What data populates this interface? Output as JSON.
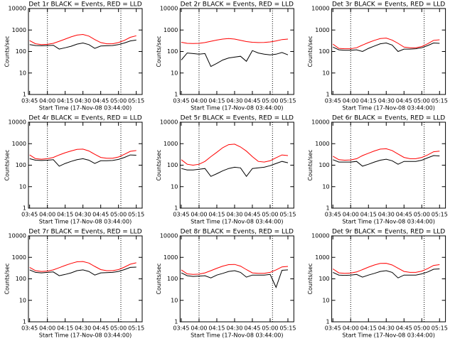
{
  "chart_data": [
    {
      "type": "line",
      "title": "Det 1r BLACK = Events, RED = LLD",
      "x_label": "Start Time (17-Nov-08 03:44:00)",
      "y_label": "Counts/sec",
      "log_y": true,
      "xlim": [
        "03:44",
        "05:20"
      ],
      "xticks": [
        "03:45",
        "04:00",
        "04:15",
        "04:30",
        "04:45",
        "05:00",
        "05:15"
      ],
      "ylim": [
        1,
        10000
      ],
      "yticks": [
        1,
        10,
        100,
        1000,
        10000
      ],
      "vlines": [
        "04:00",
        "05:02"
      ],
      "x": [
        "03:45",
        "03:50",
        "03:55",
        "04:00",
        "04:05",
        "04:10",
        "04:15",
        "04:20",
        "04:25",
        "04:30",
        "04:35",
        "04:40",
        "04:45",
        "04:50",
        "04:55",
        "05:00",
        "05:05",
        "05:10",
        "05:15"
      ],
      "series": [
        {
          "name": "Events",
          "color": "#000000",
          "values": [
            210,
            190,
            185,
            190,
            195,
            130,
            150,
            175,
            220,
            250,
            210,
            140,
            180,
            185,
            190,
            210,
            250,
            310,
            340
          ]
        },
        {
          "name": "LLD",
          "color": "#ff0000",
          "values": [
            320,
            230,
            210,
            215,
            240,
            300,
            380,
            480,
            580,
            620,
            520,
            360,
            260,
            230,
            230,
            260,
            330,
            460,
            540
          ]
        }
      ]
    },
    {
      "type": "line",
      "title": "Det 2r BLACK = Events, RED = LLD",
      "x_label": "Start Time (17-Nov-08 03:44:00)",
      "y_label": "Counts/sec",
      "log_y": true,
      "xlim": [
        "03:44",
        "05:20"
      ],
      "xticks": [
        "03:45",
        "04:00",
        "04:15",
        "04:30",
        "04:45",
        "05:00",
        "05:15"
      ],
      "ylim": [
        1,
        10000
      ],
      "yticks": [
        1,
        10,
        100,
        1000,
        10000
      ],
      "vlines": [
        "04:00",
        "05:02"
      ],
      "x": [
        "03:45",
        "03:50",
        "03:55",
        "04:00",
        "04:05",
        "04:10",
        "04:15",
        "04:20",
        "04:25",
        "04:30",
        "04:35",
        "04:40",
        "04:45",
        "04:50",
        "04:55",
        "05:00",
        "05:05",
        "05:10",
        "05:15"
      ],
      "series": [
        {
          "name": "Events",
          "color": "#000000",
          "values": [
            40,
            85,
            80,
            75,
            80,
            20,
            28,
            40,
            50,
            55,
            60,
            35,
            110,
            85,
            75,
            70,
            75,
            90,
            70
          ]
        },
        {
          "name": "LLD",
          "color": "#ff0000",
          "values": [
            270,
            240,
            235,
            240,
            260,
            300,
            340,
            380,
            400,
            380,
            330,
            290,
            270,
            260,
            265,
            280,
            310,
            360,
            380
          ]
        }
      ]
    },
    {
      "type": "line",
      "title": "Det 3r BLACK = Events, RED = LLD",
      "x_label": "Start Time (17-Nov-08 03:44:00)",
      "y_label": "Counts/sec",
      "log_y": true,
      "xlim": [
        "03:44",
        "05:20"
      ],
      "xticks": [
        "03:45",
        "04:00",
        "04:15",
        "04:30",
        "04:45",
        "05:00",
        "05:15"
      ],
      "ylim": [
        1,
        10000
      ],
      "yticks": [
        1,
        10,
        100,
        1000,
        10000
      ],
      "vlines": [
        "04:00",
        "05:02"
      ],
      "x": [
        "03:45",
        "03:50",
        "03:55",
        "04:00",
        "04:05",
        "04:10",
        "04:15",
        "04:20",
        "04:25",
        "04:30",
        "04:35",
        "04:40",
        "04:45",
        "04:50",
        "04:55",
        "05:00",
        "05:05",
        "05:10",
        "05:15"
      ],
      "series": [
        {
          "name": "Events",
          "color": "#000000",
          "values": [
            160,
            120,
            115,
            115,
            120,
            100,
            140,
            180,
            230,
            250,
            200,
            100,
            130,
            130,
            135,
            150,
            190,
            250,
            240
          ]
        },
        {
          "name": "LLD",
          "color": "#ff0000",
          "values": [
            220,
            140,
            135,
            135,
            150,
            200,
            260,
            330,
            400,
            420,
            340,
            240,
            160,
            150,
            150,
            170,
            230,
            330,
            350
          ]
        }
      ]
    },
    {
      "type": "line",
      "title": "Det 4r BLACK = Events, RED = LLD",
      "x_label": "Start Time (17-Nov-08 03:44:00)",
      "y_label": "Counts/sec",
      "log_y": true,
      "xlim": [
        "03:44",
        "05:20"
      ],
      "xticks": [
        "03:45",
        "04:00",
        "04:15",
        "04:30",
        "04:45",
        "05:00",
        "05:15"
      ],
      "ylim": [
        1,
        10000
      ],
      "yticks": [
        1,
        10,
        100,
        1000,
        10000
      ],
      "vlines": [
        "04:00",
        "05:02"
      ],
      "x": [
        "03:45",
        "03:50",
        "03:55",
        "04:00",
        "04:05",
        "04:10",
        "04:15",
        "04:20",
        "04:25",
        "04:30",
        "04:35",
        "04:40",
        "04:45",
        "04:50",
        "04:55",
        "05:00",
        "05:05",
        "05:10",
        "05:15"
      ],
      "series": [
        {
          "name": "Events",
          "color": "#000000",
          "values": [
            200,
            170,
            165,
            170,
            180,
            90,
            120,
            150,
            180,
            200,
            170,
            120,
            160,
            160,
            165,
            185,
            230,
            300,
            290
          ]
        },
        {
          "name": "LLD",
          "color": "#ff0000",
          "values": [
            300,
            200,
            190,
            200,
            230,
            300,
            380,
            460,
            540,
            560,
            460,
            320,
            230,
            210,
            210,
            240,
            320,
            440,
            480
          ]
        }
      ]
    },
    {
      "type": "line",
      "title": "Det 5r BLACK = Events, RED = LLD",
      "x_label": "Start Time (17-Nov-08 03:44:00)",
      "y_label": "Counts/sec",
      "log_y": true,
      "xlim": [
        "03:44",
        "05:20"
      ],
      "xticks": [
        "03:45",
        "04:00",
        "04:15",
        "04:30",
        "04:45",
        "05:00",
        "05:15"
      ],
      "ylim": [
        1,
        10000
      ],
      "yticks": [
        1,
        10,
        100,
        1000,
        10000
      ],
      "vlines": [
        "04:00",
        "05:02"
      ],
      "x": [
        "03:45",
        "03:50",
        "03:55",
        "04:00",
        "04:05",
        "04:10",
        "04:15",
        "04:20",
        "04:25",
        "04:30",
        "04:35",
        "04:40",
        "04:45",
        "04:50",
        "04:55",
        "05:00",
        "05:05",
        "05:10",
        "05:15"
      ],
      "series": [
        {
          "name": "Events",
          "color": "#000000",
          "values": [
            70,
            60,
            60,
            65,
            70,
            30,
            40,
            55,
            70,
            80,
            75,
            30,
            70,
            75,
            80,
            95,
            120,
            150,
            130
          ]
        },
        {
          "name": "LLD",
          "color": "#ff0000",
          "values": [
            180,
            110,
            100,
            110,
            150,
            250,
            400,
            650,
            900,
            950,
            700,
            450,
            250,
            150,
            140,
            160,
            220,
            300,
            280
          ]
        }
      ]
    },
    {
      "type": "line",
      "title": "Det 6r BLACK = Events, RED = LLD",
      "x_label": "Start Time (17-Nov-08 03:44:00)",
      "y_label": "Counts/sec",
      "log_y": true,
      "xlim": [
        "03:44",
        "05:20"
      ],
      "xticks": [
        "03:45",
        "04:00",
        "04:15",
        "04:30",
        "04:45",
        "05:00",
        "05:15"
      ],
      "ylim": [
        1,
        10000
      ],
      "yticks": [
        1,
        10,
        100,
        1000,
        10000
      ],
      "vlines": [
        "04:00",
        "05:02"
      ],
      "x": [
        "03:45",
        "03:50",
        "03:55",
        "04:00",
        "04:05",
        "04:10",
        "04:15",
        "04:20",
        "04:25",
        "04:30",
        "04:35",
        "04:40",
        "04:45",
        "04:50",
        "04:55",
        "05:00",
        "05:05",
        "05:10",
        "05:15"
      ],
      "series": [
        {
          "name": "Events",
          "color": "#000000",
          "values": [
            180,
            140,
            140,
            140,
            150,
            90,
            110,
            140,
            170,
            190,
            160,
            110,
            150,
            150,
            150,
            170,
            220,
            280,
            270
          ]
        },
        {
          "name": "LLD",
          "color": "#ff0000",
          "values": [
            260,
            180,
            170,
            175,
            200,
            280,
            360,
            460,
            560,
            580,
            480,
            330,
            230,
            200,
            200,
            230,
            300,
            420,
            450
          ]
        }
      ]
    },
    {
      "type": "line",
      "title": "Det 7r BLACK = Events, RED = LLD",
      "x_label": "Start Time (17-Nov-08 03:44:00)",
      "y_label": "Counts/sec",
      "log_y": true,
      "xlim": [
        "03:44",
        "05:20"
      ],
      "xticks": [
        "03:45",
        "04:00",
        "04:15",
        "04:30",
        "04:45",
        "05:00",
        "05:15"
      ],
      "ylim": [
        1,
        10000
      ],
      "yticks": [
        1,
        10,
        100,
        1000,
        10000
      ],
      "vlines": [
        "04:00",
        "05:02"
      ],
      "x": [
        "03:45",
        "03:50",
        "03:55",
        "04:00",
        "04:05",
        "04:10",
        "04:15",
        "04:20",
        "04:25",
        "04:30",
        "04:35",
        "04:40",
        "04:45",
        "04:50",
        "04:55",
        "05:00",
        "05:05",
        "05:10",
        "05:15"
      ],
      "series": [
        {
          "name": "Events",
          "color": "#000000",
          "values": [
            260,
            200,
            190,
            200,
            210,
            140,
            160,
            190,
            240,
            260,
            220,
            150,
            190,
            195,
            200,
            220,
            270,
            340,
            350
          ]
        },
        {
          "name": "LLD",
          "color": "#ff0000",
          "values": [
            340,
            240,
            220,
            230,
            260,
            330,
            420,
            520,
            620,
            640,
            540,
            380,
            270,
            240,
            240,
            270,
            350,
            480,
            560
          ]
        }
      ]
    },
    {
      "type": "line",
      "title": "Det 8r BLACK = Events, RED = LLD",
      "x_label": "Start Time (17-Nov-08 03:44:00)",
      "y_label": "Counts/sec",
      "log_y": true,
      "xlim": [
        "03:44",
        "05:20"
      ],
      "xticks": [
        "03:45",
        "04:00",
        "04:15",
        "04:30",
        "04:45",
        "05:00",
        "05:15"
      ],
      "ylim": [
        1,
        10000
      ],
      "yticks": [
        1,
        10,
        100,
        1000,
        10000
      ],
      "vlines": [
        "04:00",
        "05:02"
      ],
      "x": [
        "03:45",
        "03:50",
        "03:55",
        "04:00",
        "04:05",
        "04:10",
        "04:15",
        "04:20",
        "04:25",
        "04:30",
        "04:35",
        "04:40",
        "04:45",
        "04:50",
        "04:55",
        "05:00",
        "05:05",
        "05:10",
        "05:15"
      ],
      "series": [
        {
          "name": "Events",
          "color": "#000000",
          "values": [
            190,
            140,
            130,
            135,
            140,
            110,
            150,
            180,
            220,
            240,
            200,
            120,
            150,
            150,
            150,
            160,
            40,
            250,
            260
          ]
        },
        {
          "name": "LLD",
          "color": "#ff0000",
          "values": [
            260,
            170,
            160,
            165,
            190,
            240,
            310,
            390,
            460,
            470,
            390,
            270,
            190,
            180,
            180,
            200,
            260,
            360,
            380
          ]
        }
      ]
    },
    {
      "type": "line",
      "title": "Det 9r BLACK = Events, RED = LLD",
      "x_label": "Start Time (17-Nov-08 03:44:00)",
      "y_label": "Counts/sec",
      "log_y": true,
      "xlim": [
        "03:44",
        "05:20"
      ],
      "xticks": [
        "03:45",
        "04:00",
        "04:15",
        "04:30",
        "04:45",
        "05:00",
        "05:15"
      ],
      "ylim": [
        1,
        10000
      ],
      "yticks": [
        1,
        10,
        100,
        1000,
        10000
      ],
      "vlines": [
        "04:00",
        "05:02"
      ],
      "x": [
        "03:45",
        "03:50",
        "03:55",
        "04:00",
        "04:05",
        "04:10",
        "04:15",
        "04:20",
        "04:25",
        "04:30",
        "04:35",
        "04:40",
        "04:45",
        "04:50",
        "04:55",
        "05:00",
        "05:05",
        "05:10",
        "05:15"
      ],
      "series": [
        {
          "name": "Events",
          "color": "#000000",
          "values": [
            200,
            150,
            145,
            150,
            160,
            120,
            150,
            180,
            220,
            240,
            200,
            110,
            150,
            150,
            150,
            170,
            210,
            280,
            290
          ]
        },
        {
          "name": "LLD",
          "color": "#ff0000",
          "values": [
            290,
            190,
            180,
            185,
            210,
            270,
            350,
            440,
            520,
            530,
            440,
            310,
            220,
            200,
            200,
            230,
            300,
            420,
            460
          ]
        }
      ]
    }
  ]
}
